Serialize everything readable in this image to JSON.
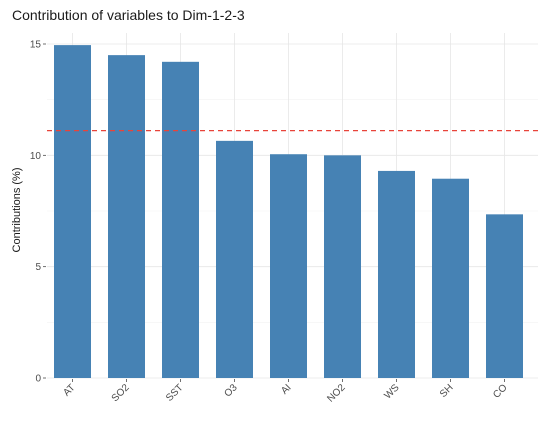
{
  "chart_data": {
    "type": "bar",
    "title": "Contribution of variables to Dim-1-2-3",
    "xlabel": "",
    "ylabel": "Contributions (%)",
    "categories": [
      "AT",
      "SO2",
      "SST",
      "O3",
      "AI",
      "NO2",
      "WS",
      "SH",
      "CO"
    ],
    "values": [
      14.95,
      14.5,
      14.2,
      10.65,
      10.05,
      10.0,
      9.3,
      8.95,
      7.35
    ],
    "ylim": [
      0,
      15.0
    ],
    "yticks": [
      0,
      5,
      10,
      15
    ],
    "reference_line": 11.11,
    "grid": true,
    "bar_color": "#4682b4",
    "reference_line_color": "#e8443a"
  }
}
